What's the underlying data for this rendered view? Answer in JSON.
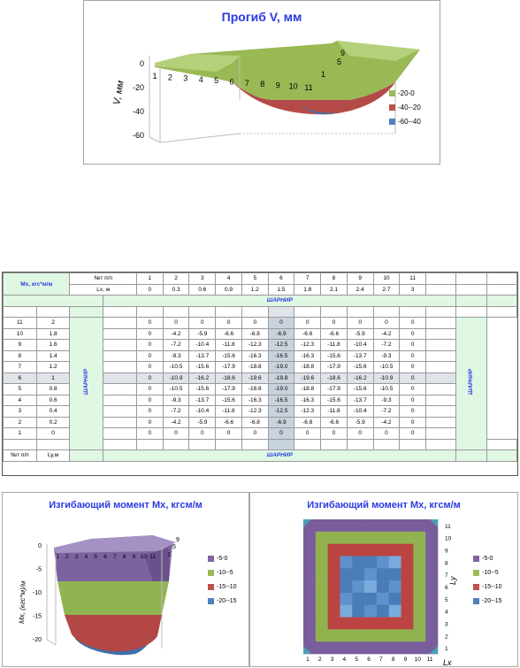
{
  "chart_top": {
    "title": "Прогиб V, мм",
    "ylabel": "V, мм",
    "y_ticks": [
      "0",
      "-20",
      "-40",
      "-60"
    ],
    "x_ticks": [
      "1",
      "2",
      "3",
      "4",
      "5",
      "6",
      "7",
      "8",
      "9",
      "10",
      "11"
    ],
    "depth_ticks": [
      "1",
      "5",
      "9"
    ],
    "legend": [
      {
        "label": "-20-0",
        "color": "#9bbb59"
      },
      {
        "label": "-40--20",
        "color": "#c0504d"
      },
      {
        "label": "-60--40",
        "color": "#4f81bd"
      }
    ]
  },
  "table": {
    "mx_label": "Mx, кгс*м/м",
    "row_num_label": "№т п/п",
    "lx_label": "Lx, м",
    "col_nums": [
      "1",
      "2",
      "3",
      "4",
      "5",
      "6",
      "7",
      "8",
      "9",
      "10",
      "11"
    ],
    "lx_values": [
      "0",
      "0.3",
      "0.6",
      "0.9",
      "1.2",
      "1.5",
      "1.8",
      "2.1",
      "2.4",
      "2.7",
      "3"
    ],
    "hinge": "ШАРНИР",
    "footer_num_label": "№т п/п",
    "ly_label": "Ly,м",
    "rows": [
      {
        "n": "11",
        "ly": "2",
        "v": [
          "0",
          "0",
          "0",
          "0",
          "0",
          "0",
          "0",
          "0",
          "0",
          "0",
          "0"
        ]
      },
      {
        "n": "10",
        "ly": "1.8",
        "v": [
          "0",
          "-4.2",
          "-5.9",
          "-6.6",
          "-6.8",
          "-6.9",
          "-6.8",
          "-6.6",
          "-5.9",
          "-4.2",
          "0"
        ]
      },
      {
        "n": "9",
        "ly": "1.6",
        "v": [
          "0",
          "-7.2",
          "-10.4",
          "-11.8",
          "-12.3",
          "-12.5",
          "-12.3",
          "-11.8",
          "-10.4",
          "-7.2",
          "0"
        ]
      },
      {
        "n": "8",
        "ly": "1.4",
        "v": [
          "0",
          "-9.3",
          "-13.7",
          "-15.6",
          "-16.3",
          "-16.5",
          "-16.3",
          "-15.6",
          "-13.7",
          "-9.3",
          "0"
        ]
      },
      {
        "n": "7",
        "ly": "1.2",
        "v": [
          "0",
          "-10.5",
          "-15.6",
          "-17.9",
          "-18.8",
          "-19.0",
          "-18.8",
          "-17.9",
          "-15.6",
          "-10.5",
          "0"
        ]
      },
      {
        "n": "6",
        "ly": "1",
        "v": [
          "0",
          "-10.9",
          "-16.2",
          "-18.6",
          "-19.6",
          "-19.8",
          "-19.6",
          "-18.6",
          "-16.2",
          "-10.9",
          "0"
        ]
      },
      {
        "n": "5",
        "ly": "0.8",
        "v": [
          "0",
          "-10.5",
          "-15.6",
          "-17.9",
          "-18.8",
          "-19.0",
          "-18.8",
          "-17.9",
          "-15.6",
          "-10.5",
          "0"
        ]
      },
      {
        "n": "4",
        "ly": "0.6",
        "v": [
          "0",
          "-9.3",
          "-13.7",
          "-15.6",
          "-16.3",
          "-16.5",
          "-16.3",
          "-15.6",
          "-13.7",
          "-9.3",
          "0"
        ]
      },
      {
        "n": "3",
        "ly": "0.4",
        "v": [
          "0",
          "-7.2",
          "-10.4",
          "-11.8",
          "-12.3",
          "-12.5",
          "-12.3",
          "-11.8",
          "-10.4",
          "-7.2",
          "0"
        ]
      },
      {
        "n": "2",
        "ly": "0.2",
        "v": [
          "0",
          "-4.2",
          "-5.9",
          "-6.6",
          "-6.8",
          "-6.9",
          "-6.8",
          "-6.6",
          "-5.9",
          "-4.2",
          "0"
        ]
      },
      {
        "n": "1",
        "ly": "0",
        "v": [
          "0",
          "0",
          "0",
          "0",
          "0",
          "0",
          "0",
          "0",
          "0",
          "0",
          "0"
        ]
      }
    ]
  },
  "chart_bl": {
    "title": "Изгибающий момент Mx, кгсм/м",
    "ylabel": "Mx, (кгс*м)/м",
    "y_ticks": [
      "0",
      "-5",
      "-10",
      "-15",
      "-20"
    ],
    "x_ticks": [
      "1",
      "2",
      "3",
      "4",
      "5",
      "6",
      "7",
      "8",
      "9",
      "10",
      "11"
    ],
    "depth_ticks": [
      "1",
      "5",
      "9"
    ],
    "legend": [
      {
        "label": "-5-0",
        "color": "#8064a2"
      },
      {
        "label": "-10--5",
        "color": "#9bbb59"
      },
      {
        "label": "-15--10",
        "color": "#c0504d"
      },
      {
        "label": "-20--15",
        "color": "#4f81bd"
      }
    ]
  },
  "chart_br": {
    "title": "Изгибающий момент Mx, кгсм/м",
    "xlabel": "Lx",
    "ylabel": "Ly",
    "x_ticks": [
      "1",
      "2",
      "3",
      "4",
      "5",
      "6",
      "7",
      "8",
      "9",
      "10",
      "11"
    ],
    "y_ticks": [
      "1",
      "2",
      "3",
      "4",
      "5",
      "6",
      "7",
      "8",
      "9",
      "10",
      "11"
    ],
    "legend": [
      {
        "label": "-5-0",
        "color": "#8064a2"
      },
      {
        "label": "-10--5",
        "color": "#9bbb59"
      },
      {
        "label": "-15--10",
        "color": "#c0504d"
      },
      {
        "label": "-20--15",
        "color": "#4f81bd"
      }
    ]
  },
  "chart_data": [
    {
      "type": "surface",
      "title": "Прогиб V, мм",
      "ylabel": "V, мм",
      "categories": [
        "1",
        "2",
        "3",
        "4",
        "5",
        "6",
        "7",
        "8",
        "9",
        "10",
        "11"
      ],
      "ylim": [
        -60,
        0
      ],
      "legend_position": "right",
      "bands": [
        "-20-0",
        "-40--20",
        "-60--40"
      ]
    },
    {
      "type": "surface",
      "title": "Изгибающий момент Mx, кгсм/м",
      "ylabel": "Mx, (кгс*м)/м",
      "categories": [
        "1",
        "2",
        "3",
        "4",
        "5",
        "6",
        "7",
        "8",
        "9",
        "10",
        "11"
      ],
      "ylim": [
        -20,
        0
      ],
      "legend_position": "right",
      "bands": [
        "-5-0",
        "-10--5",
        "-15--10",
        "-20--15"
      ]
    },
    {
      "type": "heatmap",
      "title": "Изгибающий момент Mx, кгсм/м",
      "xlabel": "Lx",
      "ylabel": "Ly",
      "x": [
        "1",
        "2",
        "3",
        "4",
        "5",
        "6",
        "7",
        "8",
        "9",
        "10",
        "11"
      ],
      "y": [
        "1",
        "2",
        "3",
        "4",
        "5",
        "6",
        "7",
        "8",
        "9",
        "10",
        "11"
      ],
      "legend_position": "right",
      "bands": [
        "-5-0",
        "-10--5",
        "-15--10",
        "-20--15"
      ]
    }
  ]
}
